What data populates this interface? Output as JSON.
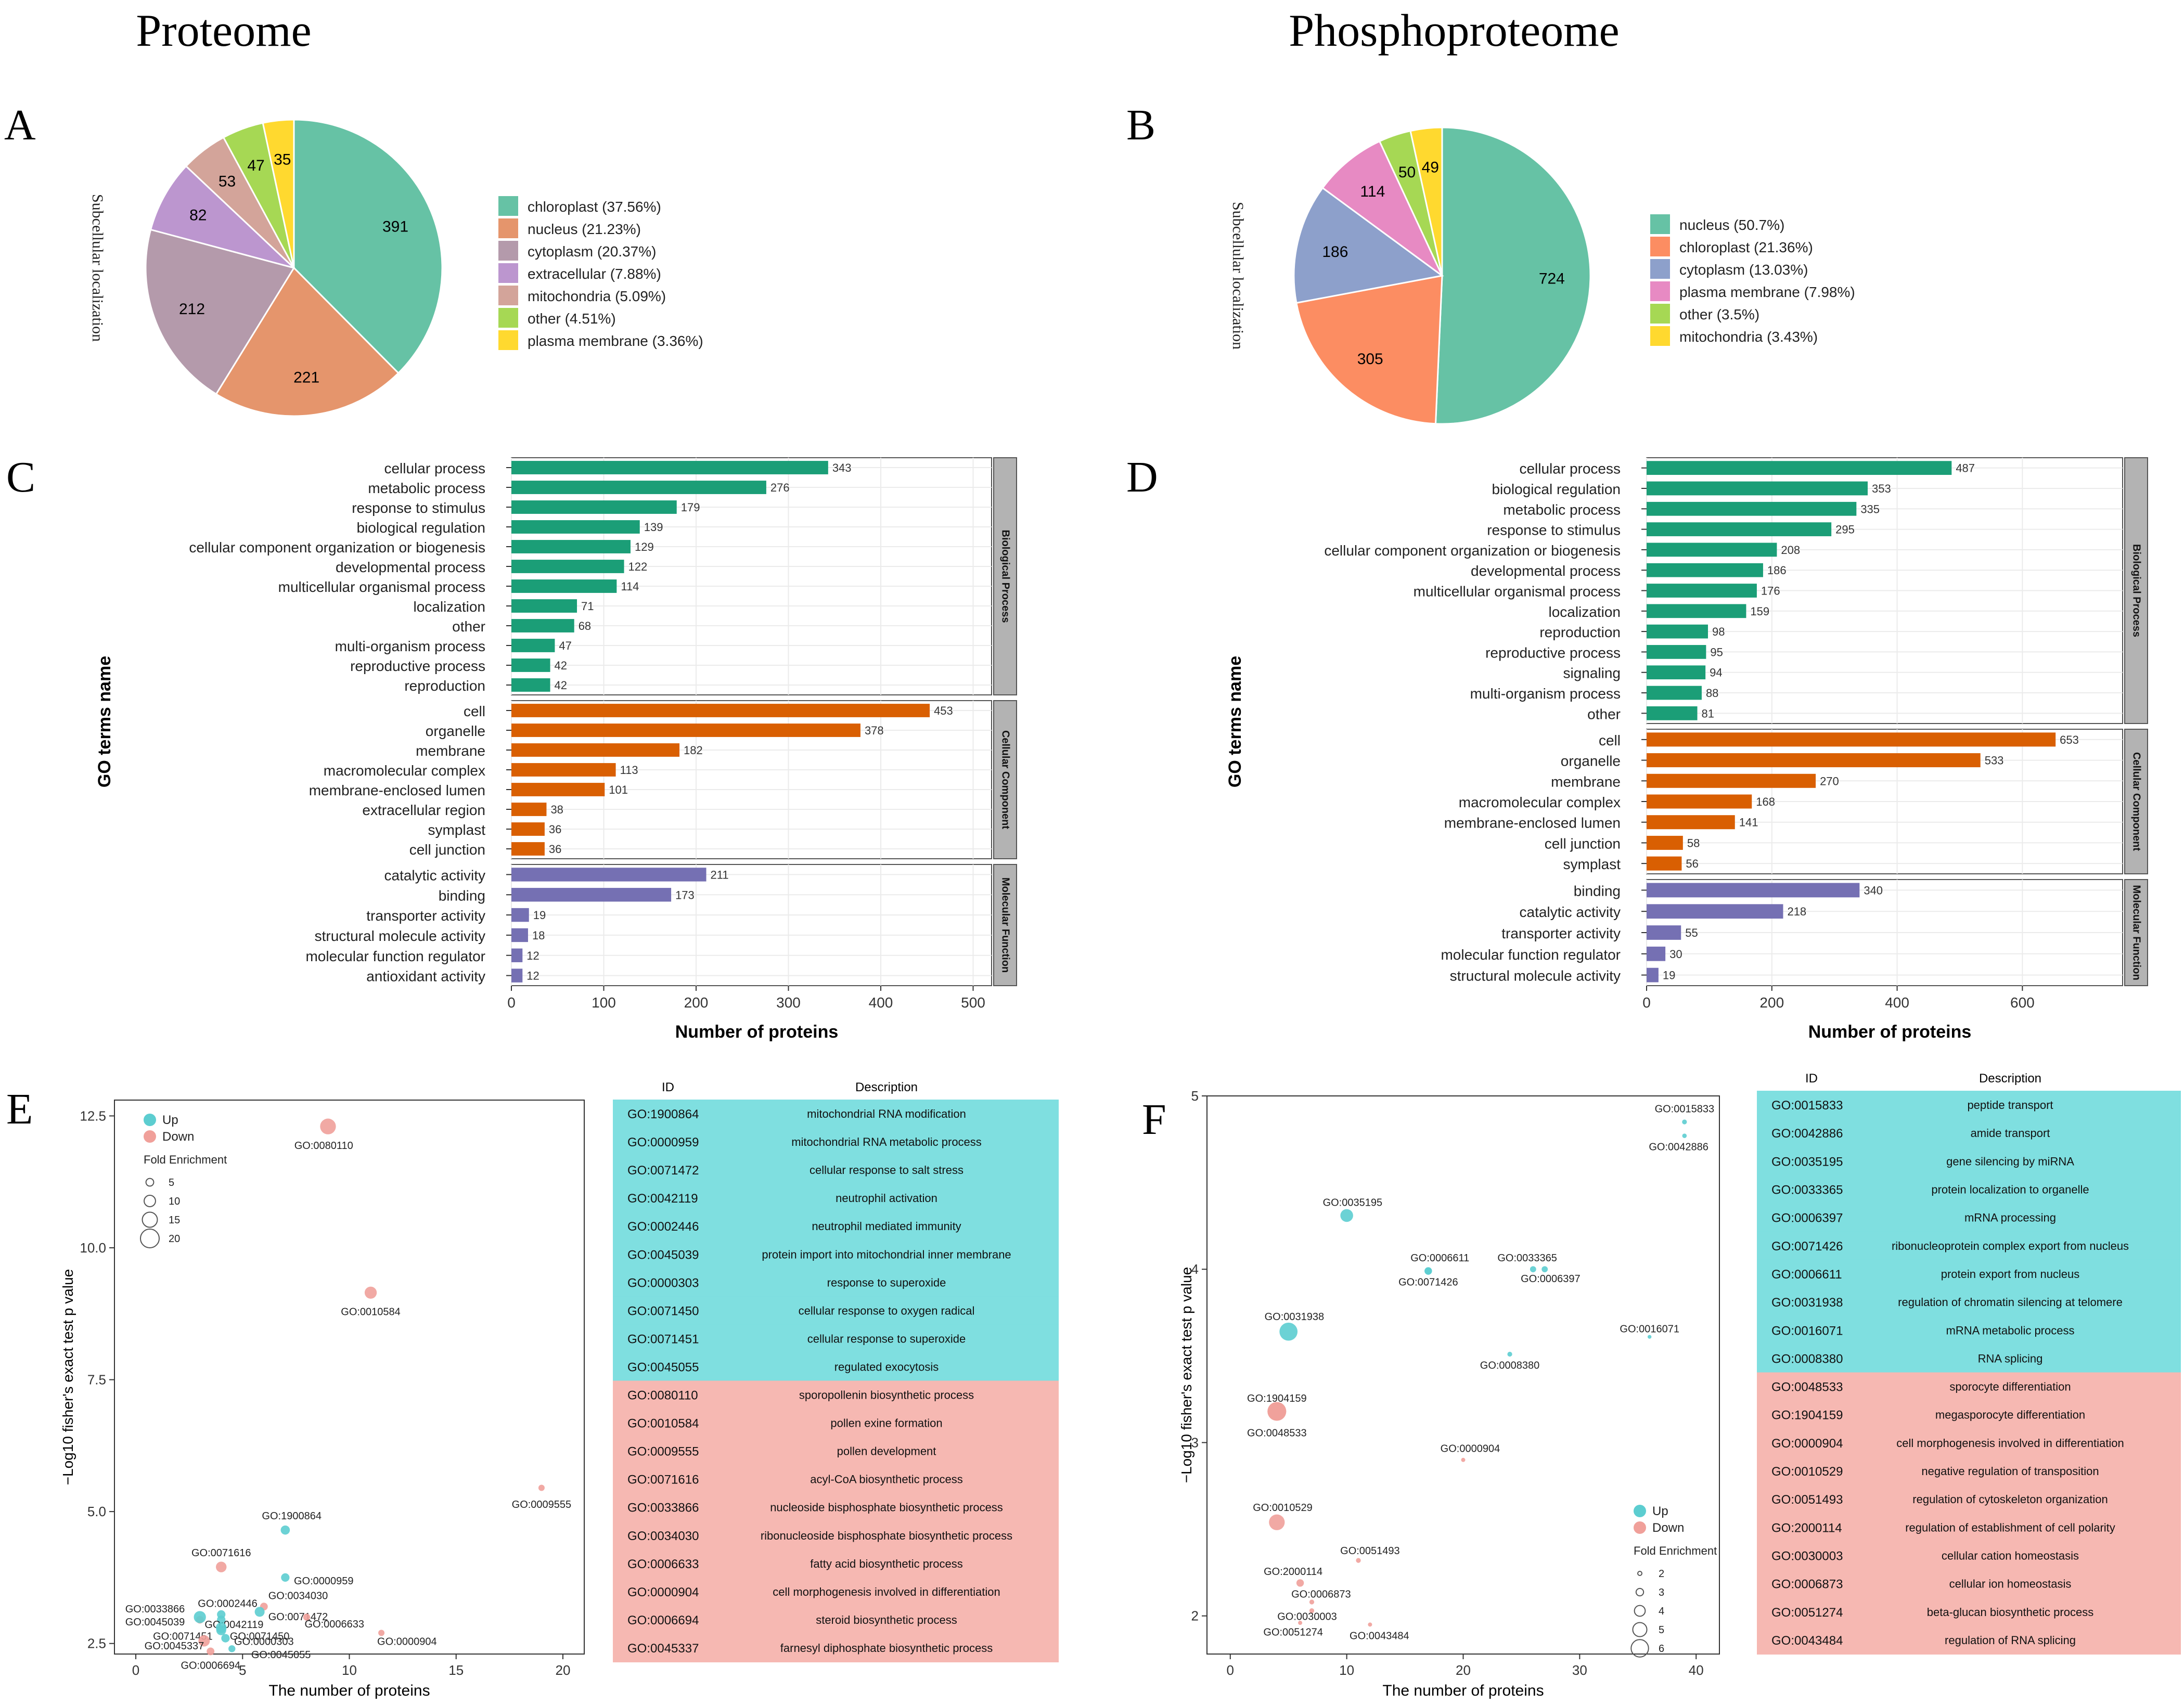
{
  "headings": {
    "left": "Proteome",
    "right": "Phosphoproteome"
  },
  "panel_letters": {
    "A": "A",
    "B": "B",
    "C": "C",
    "D": "D",
    "E": "E",
    "F": "F"
  },
  "colors": {
    "pie": [
      "#66c2a5",
      "#fc8d62",
      "#8da0cb",
      "#e78ac3",
      "#a6d854",
      "#ffd92f"
    ],
    "pieA": [
      "#66c2a5",
      "#e5956c",
      "#b49aab",
      "#bc96cf",
      "#d3a49a",
      "#a6d854",
      "#ffd92f"
    ],
    "bp": "#1b9e77",
    "cc": "#d95f02",
    "mf": "#7570b3",
    "up": "#7fdfe0",
    "down": "#f6b8b2",
    "up_pt": "#5ccdd0",
    "down_pt": "#f0a09a"
  },
  "chart_data": [
    {
      "id": "A",
      "type": "pie",
      "ylabel": "Subcellular localization",
      "slices": [
        {
          "label": "chloroplast (37.56%)",
          "value": 391
        },
        {
          "label": "nucleus (21.23%)",
          "value": 221
        },
        {
          "label": "cytoplasm (20.37%)",
          "value": 212
        },
        {
          "label": "extracellular (7.88%)",
          "value": 82
        },
        {
          "label": "mitochondria (5.09%)",
          "value": 53
        },
        {
          "label": "other (4.51%)",
          "value": 47
        },
        {
          "label": "plasma membrane (3.36%)",
          "value": 35
        }
      ]
    },
    {
      "id": "B",
      "type": "pie",
      "ylabel": "Subcellular localization",
      "slices": [
        {
          "label": "nucleus (50.7%)",
          "value": 724
        },
        {
          "label": "chloroplast (21.36%)",
          "value": 305
        },
        {
          "label": "cytoplasm (13.03%)",
          "value": 186
        },
        {
          "label": "plasma membrane (7.98%)",
          "value": 114
        },
        {
          "label": "other (3.5%)",
          "value": 50
        },
        {
          "label": "mitochondria (3.43%)",
          "value": 49
        }
      ]
    },
    {
      "id": "C",
      "type": "bar",
      "xlabel": "Number of proteins",
      "ylabel": "GO terms name",
      "xlim": [
        0,
        520
      ],
      "xticks": [
        0,
        100,
        200,
        300,
        400,
        500
      ],
      "groups": [
        {
          "name": "Biological Process",
          "color": "bp",
          "categories": [
            "cellular process",
            "metabolic process",
            "response to stimulus",
            "biological regulation",
            "cellular component organization or biogenesis",
            "developmental process",
            "multicellular organismal process",
            "localization",
            "other",
            "multi-organism process",
            "reproductive process",
            "reproduction"
          ],
          "values": [
            343,
            276,
            179,
            139,
            129,
            122,
            114,
            71,
            68,
            47,
            42,
            42
          ]
        },
        {
          "name": "Cellular Component",
          "color": "cc",
          "categories": [
            "cell",
            "organelle",
            "membrane",
            "macromolecular complex",
            "membrane-enclosed lumen",
            "extracellular region",
            "symplast",
            "cell junction"
          ],
          "values": [
            453,
            378,
            182,
            113,
            101,
            38,
            36,
            36
          ]
        },
        {
          "name": "Molecular Function",
          "color": "mf",
          "categories": [
            "catalytic activity",
            "binding",
            "transporter activity",
            "structural molecule activity",
            "molecular function regulator",
            "antioxidant activity"
          ],
          "values": [
            211,
            173,
            19,
            18,
            12,
            12
          ]
        }
      ]
    },
    {
      "id": "D",
      "type": "bar",
      "xlabel": "Number of proteins",
      "ylabel": "GO terms name",
      "xlim": [
        0,
        760
      ],
      "xticks": [
        0,
        200,
        400,
        600
      ],
      "groups": [
        {
          "name": "Biological Process",
          "color": "bp",
          "categories": [
            "cellular process",
            "biological regulation",
            "metabolic process",
            "response to stimulus",
            "cellular component organization or biogenesis",
            "developmental process",
            "multicellular organismal process",
            "localization",
            "reproduction",
            "reproductive process",
            "signaling",
            "multi-organism process",
            "other"
          ],
          "values": [
            487,
            353,
            335,
            295,
            208,
            186,
            176,
            159,
            98,
            95,
            94,
            88,
            81
          ]
        },
        {
          "name": "Cellular Component",
          "color": "cc",
          "categories": [
            "cell",
            "organelle",
            "membrane",
            "macromolecular complex",
            "membrane-enclosed lumen",
            "cell junction",
            "symplast"
          ],
          "values": [
            653,
            533,
            270,
            168,
            141,
            58,
            56
          ]
        },
        {
          "name": "Molecular Function",
          "color": "mf",
          "categories": [
            "binding",
            "catalytic activity",
            "transporter activity",
            "molecular function regulator",
            "structural molecule activity"
          ],
          "values": [
            340,
            218,
            55,
            30,
            19
          ]
        }
      ]
    },
    {
      "id": "E",
      "type": "scatter",
      "xlabel": "The number of proteins",
      "ylabel": "−Log10 fisher's exact test p value",
      "xlim": [
        -1,
        21
      ],
      "ylim": [
        2.3,
        12.8
      ],
      "xticks": [
        0,
        5,
        10,
        15,
        20
      ],
      "yticks": [
        2.5,
        5.0,
        7.5,
        10.0,
        12.5
      ],
      "legend": {
        "up": "Up",
        "down": "Down",
        "size_title": "Fold Enrichment",
        "sizes": [
          5,
          10,
          15,
          20
        ]
      },
      "points": [
        {
          "id": "GO:0080110",
          "x": 9,
          "y": 12.3,
          "fe": 16,
          "dir": "down",
          "lx": -0.2,
          "ly": -0.35
        },
        {
          "id": "GO:0010584",
          "x": 11,
          "y": 9.15,
          "fe": 11,
          "dir": "down",
          "lx": 0,
          "ly": -0.35
        },
        {
          "id": "GO:0009555",
          "x": 19,
          "y": 5.45,
          "fe": 3,
          "dir": "down",
          "lx": 0,
          "ly": -0.3
        },
        {
          "id": "GO:1900864",
          "x": 7,
          "y": 4.65,
          "fe": 7,
          "dir": "up",
          "lx": 0.3,
          "ly": 0.28
        },
        {
          "id": "GO:0071616",
          "x": 4,
          "y": 3.95,
          "fe": 9,
          "dir": "down",
          "lx": 0,
          "ly": 0.28
        },
        {
          "id": "GO:0000959",
          "x": 7,
          "y": 3.75,
          "fe": 6,
          "dir": "up",
          "lx": 1.8,
          "ly": -0.05
        },
        {
          "id": "GO:0034030",
          "x": 6,
          "y": 3.2,
          "fe": 5,
          "dir": "down",
          "lx": 1.6,
          "ly": 0.22
        },
        {
          "id": "GO:0071472",
          "x": 5.8,
          "y": 3.1,
          "fe": 8,
          "dir": "up",
          "lx": 1.8,
          "ly": -0.08
        },
        {
          "id": "GO:0002446",
          "x": 4,
          "y": 3.05,
          "fe": 6,
          "dir": "up",
          "lx": 0.3,
          "ly": 0.22
        },
        {
          "id": "GO:0042119",
          "x": 4,
          "y": 2.95,
          "fe": 6,
          "dir": "up",
          "lx": 0.6,
          "ly": -0.08
        },
        {
          "id": "GO:0033866",
          "x": 3,
          "y": 2.95,
          "fe": 5,
          "dir": "down",
          "lx": -2.1,
          "ly": 0.22
        },
        {
          "id": "GO:0045039",
          "x": 3,
          "y": 3.0,
          "fe": 11,
          "dir": "up",
          "lx": -2.1,
          "ly": -0.08
        },
        {
          "id": "GO:0071450",
          "x": 4,
          "y": 2.8,
          "fe": 9,
          "dir": "up",
          "lx": 1.8,
          "ly": -0.15
        },
        {
          "id": "GO:0071451",
          "x": 4,
          "y": 2.75,
          "fe": 8,
          "dir": "up",
          "lx": -1.8,
          "ly": -0.1
        },
        {
          "id": "GO:0000303",
          "x": 4.2,
          "y": 2.6,
          "fe": 6,
          "dir": "up",
          "lx": 1.8,
          "ly": -0.05
        },
        {
          "id": "GO:0045337",
          "x": 3.2,
          "y": 2.55,
          "fe": 10,
          "dir": "down",
          "lx": -1.4,
          "ly": -0.08
        },
        {
          "id": "GO:0045055",
          "x": 4.5,
          "y": 2.4,
          "fe": 4,
          "dir": "up",
          "lx": 2.3,
          "ly": -0.1
        },
        {
          "id": "GO:0006694",
          "x": 3.5,
          "y": 2.35,
          "fe": 5,
          "dir": "down",
          "lx": 0,
          "ly": -0.25
        },
        {
          "id": "GO:0006633",
          "x": 8,
          "y": 3.0,
          "fe": 4,
          "dir": "down",
          "lx": 1.3,
          "ly": -0.12
        },
        {
          "id": "GO:0000904",
          "x": 11.5,
          "y": 2.7,
          "fe": 3,
          "dir": "down",
          "lx": 1.2,
          "ly": -0.15
        }
      ]
    },
    {
      "id": "F",
      "type": "scatter",
      "xlabel": "The number of proteins",
      "ylabel": "−Log10 fisher's exact test p value",
      "xlim": [
        -2,
        42
      ],
      "ylim": [
        1.78,
        5.0
      ],
      "xticks": [
        0,
        10,
        20,
        30,
        40
      ],
      "yticks": [
        2,
        3,
        4,
        5
      ],
      "legend": {
        "up": "Up",
        "down": "Down",
        "size_title": "Fold Enrichment",
        "sizes": [
          2,
          3,
          4,
          5,
          6
        ]
      },
      "points": [
        {
          "id": "GO:0015833",
          "x": 39,
          "y": 4.85,
          "fe": 2.2,
          "dir": "up",
          "lx": 0,
          "ly": 0.08
        },
        {
          "id": "GO:0042886",
          "x": 39,
          "y": 4.77,
          "fe": 2.1,
          "dir": "up",
          "lx": -0.5,
          "ly": -0.06
        },
        {
          "id": "GO:0035195",
          "x": 10,
          "y": 4.31,
          "fe": 4.6,
          "dir": "up",
          "lx": 0.5,
          "ly": 0.08
        },
        {
          "id": "GO:0006611",
          "x": 17,
          "y": 3.99,
          "fe": 3.0,
          "dir": "up",
          "lx": 1.0,
          "ly": 0.08
        },
        {
          "id": "GO:0071426",
          "x": 17,
          "y": 3.99,
          "fe": 3.0,
          "dir": "up",
          "lx": 0,
          "ly": -0.06
        },
        {
          "id": "GO:0033365",
          "x": 26,
          "y": 4.0,
          "fe": 2.6,
          "dir": "up",
          "lx": -0.5,
          "ly": 0.07
        },
        {
          "id": "GO:0006397",
          "x": 27,
          "y": 4.0,
          "fe": 2.6,
          "dir": "up",
          "lx": 0.5,
          "ly": -0.05
        },
        {
          "id": "GO:0031938",
          "x": 5,
          "y": 3.64,
          "fe": 6.2,
          "dir": "up",
          "lx": 0.5,
          "ly": 0.09
        },
        {
          "id": "GO:0016071",
          "x": 36,
          "y": 3.61,
          "fe": 1.9,
          "dir": "up",
          "lx": 0,
          "ly": 0.05
        },
        {
          "id": "GO:0008380",
          "x": 24,
          "y": 3.51,
          "fe": 2.2,
          "dir": "up",
          "lx": 0,
          "ly": -0.06
        },
        {
          "id": "GO:1904159",
          "x": 4,
          "y": 3.18,
          "fe": 6.4,
          "dir": "down",
          "lx": 0,
          "ly": 0.08
        },
        {
          "id": "GO:0048533",
          "x": 4,
          "y": 3.18,
          "fe": 6.4,
          "dir": "down",
          "lx": 0,
          "ly": -0.12
        },
        {
          "id": "GO:0000904",
          "x": 20,
          "y": 2.9,
          "fe": 2.0,
          "dir": "down",
          "lx": 0.6,
          "ly": 0.07
        },
        {
          "id": "GO:0010529",
          "x": 4,
          "y": 2.54,
          "fe": 5.5,
          "dir": "down",
          "lx": 0.5,
          "ly": 0.09
        },
        {
          "id": "GO:0051493",
          "x": 11,
          "y": 2.32,
          "fe": 2.2,
          "dir": "down",
          "lx": 1.0,
          "ly": 0.06
        },
        {
          "id": "GO:2000114",
          "x": 6,
          "y": 2.19,
          "fe": 3.0,
          "dir": "down",
          "lx": -0.6,
          "ly": 0.07
        },
        {
          "id": "GO:0006873",
          "x": 7,
          "y": 2.08,
          "fe": 2.2,
          "dir": "down",
          "lx": 0.8,
          "ly": 0.05
        },
        {
          "id": "GO:0030003",
          "x": 7,
          "y": 2.03,
          "fe": 2.2,
          "dir": "down",
          "lx": -0.4,
          "ly": -0.03
        },
        {
          "id": "GO:0051274",
          "x": 6,
          "y": 1.96,
          "fe": 2.0,
          "dir": "down",
          "lx": -0.6,
          "ly": -0.05
        },
        {
          "id": "GO:0043484",
          "x": 12,
          "y": 1.95,
          "fe": 2.0,
          "dir": "down",
          "lx": 0.8,
          "ly": -0.06
        }
      ]
    }
  ],
  "tables": {
    "E": {
      "header": {
        "id": "ID",
        "description": "Description"
      },
      "rows": [
        {
          "id": "GO:1900864",
          "desc": "mitochondrial RNA modification",
          "dir": "up"
        },
        {
          "id": "GO:0000959",
          "desc": "mitochondrial RNA metabolic process",
          "dir": "up"
        },
        {
          "id": "GO:0071472",
          "desc": "cellular response to salt stress",
          "dir": "up"
        },
        {
          "id": "GO:0042119",
          "desc": "neutrophil activation",
          "dir": "up"
        },
        {
          "id": "GO:0002446",
          "desc": "neutrophil mediated immunity",
          "dir": "up"
        },
        {
          "id": "GO:0045039",
          "desc": "protein import into mitochondrial inner membrane",
          "dir": "up"
        },
        {
          "id": "GO:0000303",
          "desc": "response to superoxide",
          "dir": "up"
        },
        {
          "id": "GO:0071450",
          "desc": "cellular response to oxygen radical",
          "dir": "up"
        },
        {
          "id": "GO:0071451",
          "desc": "cellular response to superoxide",
          "dir": "up"
        },
        {
          "id": "GO:0045055",
          "desc": "regulated exocytosis",
          "dir": "up"
        },
        {
          "id": "GO:0080110",
          "desc": "sporopollenin biosynthetic process",
          "dir": "down"
        },
        {
          "id": "GO:0010584",
          "desc": "pollen exine formation",
          "dir": "down"
        },
        {
          "id": "GO:0009555",
          "desc": "pollen development",
          "dir": "down"
        },
        {
          "id": "GO:0071616",
          "desc": "acyl-CoA biosynthetic process",
          "dir": "down"
        },
        {
          "id": "GO:0033866",
          "desc": "nucleoside bisphosphate biosynthetic process",
          "dir": "down"
        },
        {
          "id": "GO:0034030",
          "desc": "ribonucleoside bisphosphate biosynthetic process",
          "dir": "down"
        },
        {
          "id": "GO:0006633",
          "desc": "fatty acid biosynthetic process",
          "dir": "down"
        },
        {
          "id": "GO:0000904",
          "desc": "cell morphogenesis involved in differentiation",
          "dir": "down"
        },
        {
          "id": "GO:0006694",
          "desc": "steroid biosynthetic process",
          "dir": "down"
        },
        {
          "id": "GO:0045337",
          "desc": "farnesyl diphosphate biosynthetic process",
          "dir": "down"
        }
      ]
    },
    "F": {
      "header": {
        "id": "ID",
        "description": "Description"
      },
      "rows": [
        {
          "id": "GO:0015833",
          "desc": "peptide transport",
          "dir": "up"
        },
        {
          "id": "GO:0042886",
          "desc": "amide transport",
          "dir": "up"
        },
        {
          "id": "GO:0035195",
          "desc": "gene silencing by miRNA",
          "dir": "up"
        },
        {
          "id": "GO:0033365",
          "desc": "protein localization to organelle",
          "dir": "up"
        },
        {
          "id": "GO:0006397",
          "desc": "mRNA processing",
          "dir": "up"
        },
        {
          "id": "GO:0071426",
          "desc": "ribonucleoprotein complex export from nucleus",
          "dir": "up"
        },
        {
          "id": "GO:0006611",
          "desc": "protein export from nucleus",
          "dir": "up"
        },
        {
          "id": "GO:0031938",
          "desc": "regulation of chromatin silencing at telomere",
          "dir": "up"
        },
        {
          "id": "GO:0016071",
          "desc": "mRNA metabolic process",
          "dir": "up"
        },
        {
          "id": "GO:0008380",
          "desc": "RNA splicing",
          "dir": "up"
        },
        {
          "id": "GO:0048533",
          "desc": "sporocyte differentiation",
          "dir": "down"
        },
        {
          "id": "GO:1904159",
          "desc": "megasporocyte differentiation",
          "dir": "down"
        },
        {
          "id": "GO:0000904",
          "desc": "cell morphogenesis involved in differentiation",
          "dir": "down"
        },
        {
          "id": "GO:0010529",
          "desc": "negative regulation of transposition",
          "dir": "down"
        },
        {
          "id": "GO:0051493",
          "desc": "regulation of cytoskeleton organization",
          "dir": "down"
        },
        {
          "id": "GO:2000114",
          "desc": "regulation of establishment of cell polarity",
          "dir": "down"
        },
        {
          "id": "GO:0030003",
          "desc": "cellular cation homeostasis",
          "dir": "down"
        },
        {
          "id": "GO:0006873",
          "desc": "cellular ion homeostasis",
          "dir": "down"
        },
        {
          "id": "GO:0051274",
          "desc": "beta-glucan biosynthetic process",
          "dir": "down"
        },
        {
          "id": "GO:0043484",
          "desc": "regulation of RNA splicing",
          "dir": "down"
        }
      ]
    }
  }
}
